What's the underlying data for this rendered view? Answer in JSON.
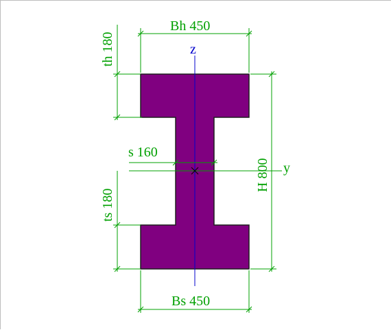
{
  "colors": {
    "section_fill": "#800080",
    "section_outline": "#1f1f1f",
    "dimension": "#00a000",
    "axis": "#0000cc"
  },
  "labels": {
    "top_width": "Bh 450",
    "bottom_width": "Bs 450",
    "top_flange_thickness": "th 180",
    "bottom_flange_thickness": "ts 180",
    "web_thickness": "s 160",
    "height": "H 800",
    "axis_z": "z",
    "axis_y": "y"
  }
}
